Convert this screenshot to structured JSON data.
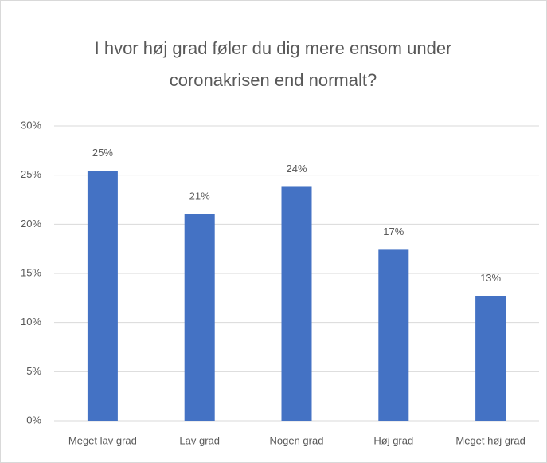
{
  "chart_data": {
    "type": "bar",
    "title": [
      "I hvor høj grad føler du dig mere ensom under",
      "coronakrisen end normalt?"
    ],
    "categories": [
      "Meget lav grad",
      "Lav grad",
      "Nogen grad",
      "Høj grad",
      "Meget høj grad"
    ],
    "values": [
      25.4,
      21.0,
      23.8,
      17.4,
      12.7
    ],
    "value_labels": [
      "25%",
      "21%",
      "24%",
      "17%",
      "13%"
    ],
    "color": "#4472c4",
    "ylim": [
      0,
      30
    ],
    "yticks": [
      {
        "value": 0,
        "label": "0%"
      },
      {
        "value": 5,
        "label": "5%"
      },
      {
        "value": 10,
        "label": "10%"
      },
      {
        "value": 15,
        "label": "15%"
      },
      {
        "value": 20,
        "label": "20%"
      },
      {
        "value": 25,
        "label": "25%"
      },
      {
        "value": 30,
        "label": "30%"
      }
    ],
    "grid": true
  }
}
